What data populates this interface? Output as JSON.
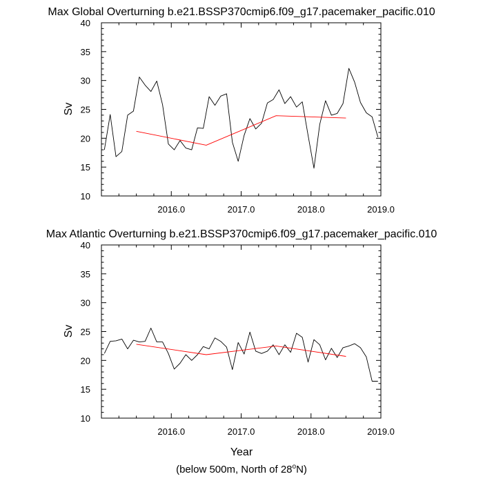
{
  "chart_data": [
    {
      "type": "line",
      "title": "Max Global Overturning b.e21.BSSP370cmip6.f09_g17.pacemaker_pacific.010",
      "ylabel": "Sv",
      "xlabel": "",
      "xlim": [
        2015.0,
        2019.0
      ],
      "ylim": [
        10,
        40
      ],
      "x_ticks": [
        "2016.0",
        "2017.0",
        "2018.0",
        "2019.0"
      ],
      "y_ticks": [
        "10",
        "15",
        "20",
        "25",
        "30",
        "35",
        "40"
      ],
      "grid": false,
      "series": [
        {
          "color": "#000000",
          "x": [
            2015.042,
            2015.125,
            2015.208,
            2015.292,
            2015.375,
            2015.458,
            2015.542,
            2015.625,
            2015.708,
            2015.792,
            2015.875,
            2015.958,
            2016.042,
            2016.125,
            2016.208,
            2016.292,
            2016.375,
            2016.458,
            2016.542,
            2016.625,
            2016.708,
            2016.792,
            2016.875,
            2016.958,
            2017.042,
            2017.125,
            2017.208,
            2017.292,
            2017.375,
            2017.458,
            2017.542,
            2017.625,
            2017.708,
            2017.792,
            2017.875,
            2017.958,
            2018.042,
            2018.125,
            2018.208,
            2018.292,
            2018.375,
            2018.458,
            2018.542,
            2018.625,
            2018.708,
            2018.792,
            2018.875,
            2018.958
          ],
          "y": [
            18.0,
            24.1,
            16.8,
            17.7,
            24.0,
            24.7,
            30.6,
            29.2,
            28.1,
            29.9,
            25.8,
            19.0,
            18.0,
            19.6,
            18.3,
            18.0,
            21.8,
            21.7,
            27.2,
            25.7,
            27.3,
            27.7,
            19.3,
            16.0,
            20.5,
            23.4,
            21.6,
            22.6,
            26.1,
            26.7,
            28.4,
            26.0,
            27.2,
            25.4,
            26.3,
            20.5,
            14.8,
            22.4,
            26.5,
            24.0,
            24.3,
            26.0,
            32.1,
            29.7,
            26.2,
            24.4,
            23.7,
            20.2
          ]
        },
        {
          "color": "#ff0000",
          "x": [
            2015.5,
            2016.5,
            2017.5,
            2018.5
          ],
          "y": [
            21.2,
            18.8,
            23.9,
            23.5
          ]
        }
      ]
    },
    {
      "type": "line",
      "title": "Max Atlantic Overturning b.e21.BSSP370cmip6.f09_g17.pacemaker_pacific.010",
      "ylabel": "Sv",
      "xlabel": "Year",
      "xlim": [
        2015.0,
        2019.0
      ],
      "ylim": [
        10,
        40
      ],
      "x_ticks": [
        "2016.0",
        "2017.0",
        "2018.0",
        "2019.0"
      ],
      "y_ticks": [
        "10",
        "15",
        "20",
        "25",
        "30",
        "35",
        "40"
      ],
      "grid": false,
      "series": [
        {
          "color": "#000000",
          "x": [
            2015.042,
            2015.125,
            2015.208,
            2015.292,
            2015.375,
            2015.458,
            2015.542,
            2015.625,
            2015.708,
            2015.792,
            2015.875,
            2015.958,
            2016.042,
            2016.125,
            2016.208,
            2016.292,
            2016.375,
            2016.458,
            2016.542,
            2016.625,
            2016.708,
            2016.792,
            2016.875,
            2016.958,
            2017.042,
            2017.125,
            2017.208,
            2017.292,
            2017.375,
            2017.458,
            2017.542,
            2017.625,
            2017.708,
            2017.792,
            2017.875,
            2017.958,
            2018.042,
            2018.125,
            2018.208,
            2018.292,
            2018.375,
            2018.458,
            2018.542,
            2018.625,
            2018.708,
            2018.792,
            2018.875,
            2018.958
          ],
          "y": [
            21.2,
            23.3,
            23.4,
            23.7,
            22.0,
            23.5,
            23.2,
            23.3,
            25.6,
            23.2,
            23.2,
            21.2,
            18.5,
            19.5,
            21.0,
            20.0,
            21.0,
            22.4,
            22.0,
            23.9,
            23.3,
            22.3,
            18.4,
            23.1,
            21.1,
            24.9,
            21.6,
            21.2,
            21.6,
            22.7,
            21.0,
            22.7,
            21.4,
            24.7,
            24.0,
            19.7,
            23.6,
            22.7,
            20.1,
            22.1,
            20.5,
            22.2,
            22.5,
            22.9,
            22.2,
            20.6,
            16.4,
            16.4
          ]
        },
        {
          "color": "#ff0000",
          "x": [
            2015.5,
            2016.5,
            2017.5,
            2018.5
          ],
          "y": [
            22.8,
            21.0,
            22.5,
            20.7
          ]
        }
      ]
    }
  ],
  "footer": {
    "prefix": "(below 500m, North of 28",
    "sup": "o",
    "suffix": "N)"
  }
}
